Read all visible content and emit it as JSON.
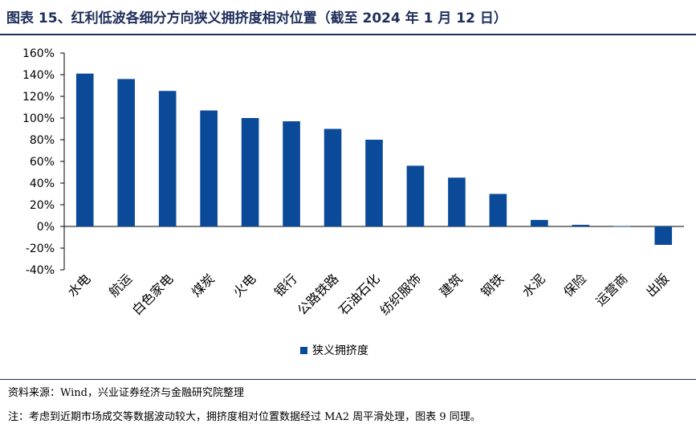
{
  "title": "图表 15、红利低波各细分方向狭义拥挤度相对位置（截至 2024 年 1 月 12 日）",
  "footer": {
    "source": "资料来源：Wind，兴业证券经济与金融研究院整理",
    "note": "注：考虑到近期市场成交等数据波动较大，拥挤度相对位置数据经过 MA2 周平滑处理，图表 9 同理。"
  },
  "colors": {
    "bar": "#0b4a99",
    "title": "#1f2f5c",
    "axis": "#000000"
  },
  "chart_data": {
    "type": "bar",
    "categories": [
      "水电",
      "航运",
      "白色家电",
      "煤炭",
      "火电",
      "银行",
      "公路铁路",
      "石油石化",
      "纺织服饰",
      "建筑",
      "钢铁",
      "水泥",
      "保险",
      "运营商",
      "出版"
    ],
    "series": [
      {
        "name": "狭义拥挤度",
        "values": [
          141,
          136,
          125,
          107,
          100,
          97,
          90,
          80,
          56,
          45,
          30,
          6,
          1.5,
          0.3,
          -17
        ]
      }
    ],
    "yticks": [
      "160%",
      "140%",
      "120%",
      "100%",
      "80%",
      "60%",
      "40%",
      "20%",
      "0%",
      "-20%",
      "-40%"
    ],
    "ylim": [
      -40,
      160
    ],
    "ylabel": "",
    "xlabel": "",
    "legend_position": "bottom-center",
    "grid": false
  }
}
